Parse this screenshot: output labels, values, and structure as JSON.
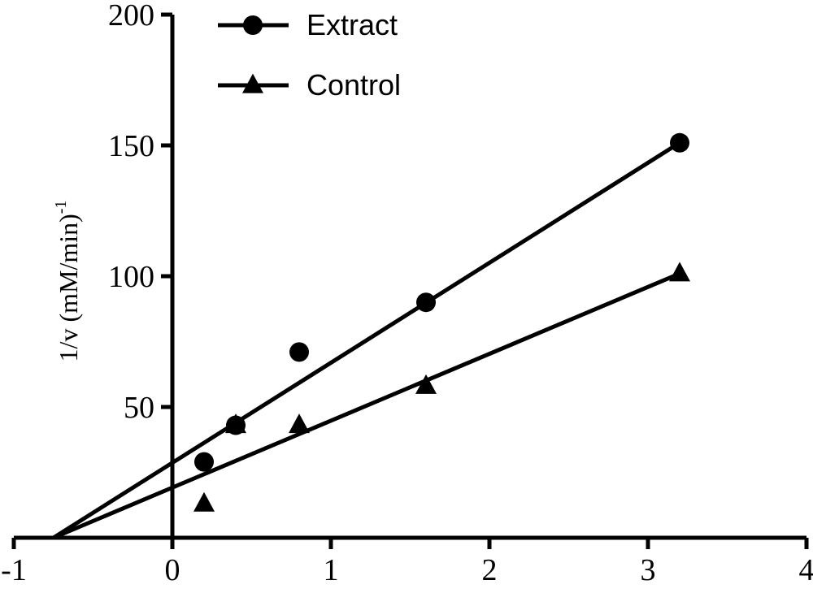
{
  "chart_data": {
    "type": "scatter",
    "title": "",
    "xlabel": "",
    "ylabel": "1/v (mM/min)",
    "ylabel_superscript": "-1",
    "xlim": [
      -1,
      4
    ],
    "ylim": [
      0,
      200
    ],
    "xticks": [
      -1,
      0,
      1,
      2,
      3,
      4
    ],
    "yticks": [
      50,
      100,
      150,
      200
    ],
    "x_tick_labels": [
      "-1",
      "0",
      "1",
      "2",
      "3",
      "4"
    ],
    "y_tick_labels": [
      "50",
      "100",
      "150",
      "200"
    ],
    "grid": false,
    "legend_position": "top-center",
    "series": [
      {
        "name": "Extract",
        "marker": "circle",
        "color": "#000000",
        "points": [
          {
            "x": 0.2,
            "y": 29
          },
          {
            "x": 0.4,
            "y": 43
          },
          {
            "x": 0.8,
            "y": 71
          },
          {
            "x": 1.6,
            "y": 90
          },
          {
            "x": 3.2,
            "y": 151
          }
        ],
        "fit_line": {
          "x": [
            -0.75,
            3.2
          ],
          "y": [
            0,
            151
          ]
        }
      },
      {
        "name": "Control",
        "marker": "triangle",
        "color": "#000000",
        "points": [
          {
            "x": 0.2,
            "y": 13
          },
          {
            "x": 0.4,
            "y": 43
          },
          {
            "x": 0.8,
            "y": 43
          },
          {
            "x": 1.6,
            "y": 58
          },
          {
            "x": 3.2,
            "y": 101
          }
        ],
        "fit_line": {
          "x": [
            -0.75,
            3.2
          ],
          "y": [
            0,
            101
          ]
        }
      }
    ]
  }
}
